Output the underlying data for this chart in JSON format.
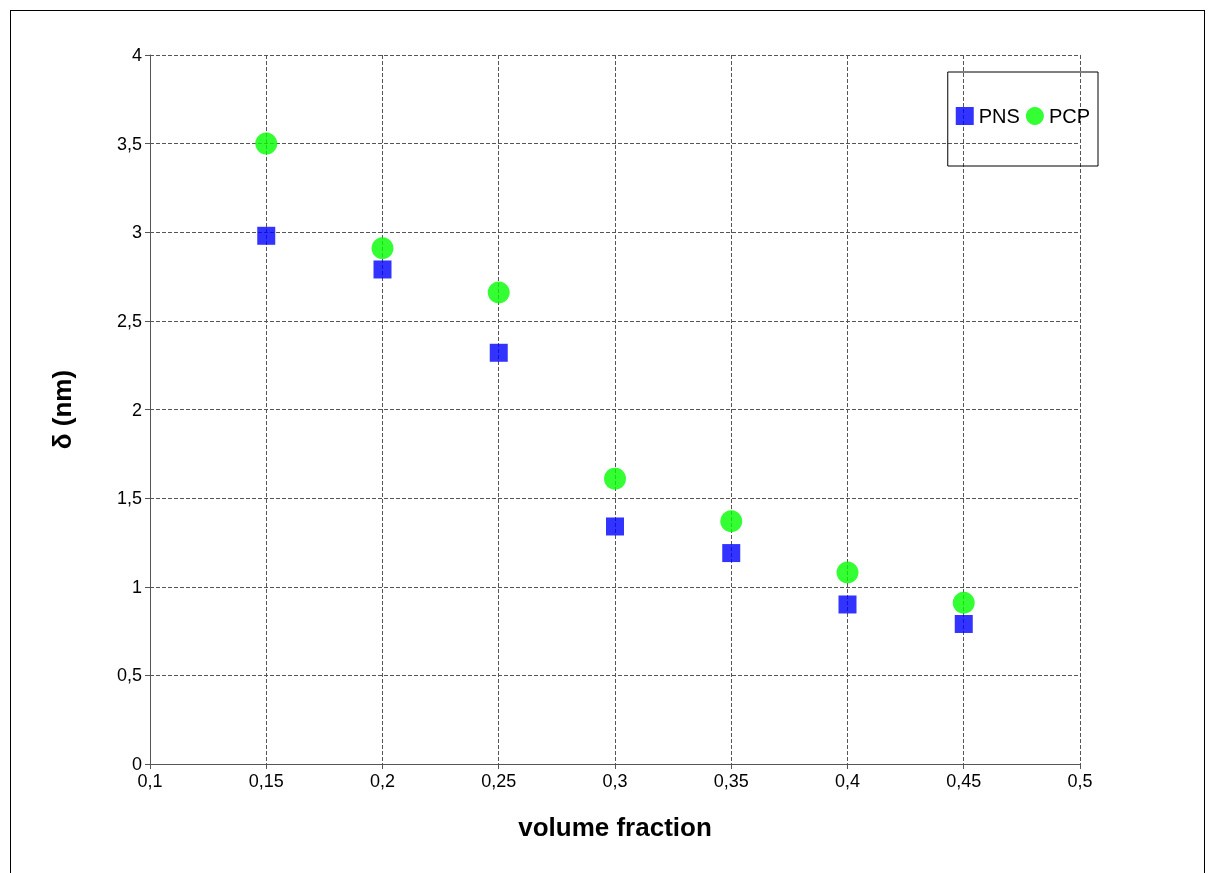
{
  "chart_data": {
    "type": "scatter",
    "xlabel": "volume fraction",
    "ylabel": "δ (nm)",
    "x": [
      0.15,
      0.2,
      0.25,
      0.3,
      0.35,
      0.4,
      0.45
    ],
    "series": [
      {
        "name": "PNS",
        "color": "#0000ff",
        "marker": "square",
        "values": [
          2.98,
          2.79,
          2.32,
          1.34,
          1.19,
          0.9,
          0.79
        ]
      },
      {
        "name": "PCP",
        "color": "#00ff00",
        "marker": "circle",
        "values": [
          3.5,
          2.91,
          2.66,
          1.61,
          1.37,
          1.08,
          0.91
        ]
      }
    ],
    "xlim": [
      0.1,
      0.5
    ],
    "xticks": [
      {
        "value": 0.1,
        "label": "0,1"
      },
      {
        "value": 0.15,
        "label": "0,15"
      },
      {
        "value": 0.2,
        "label": "0,2"
      },
      {
        "value": 0.25,
        "label": "0,25"
      },
      {
        "value": 0.3,
        "label": "0,3"
      },
      {
        "value": 0.35,
        "label": "0,35"
      },
      {
        "value": 0.4,
        "label": "0,4"
      },
      {
        "value": 0.45,
        "label": "0,45"
      },
      {
        "value": 0.5,
        "label": "0,5"
      }
    ],
    "ylim": [
      0,
      4
    ],
    "yticks": [
      0,
      {
        "value": 0.5,
        "label": "0,5"
      },
      1,
      {
        "value": 1.5,
        "label": "1,5"
      },
      2,
      {
        "value": 2.5,
        "label": "2,5"
      },
      3,
      {
        "value": 3.5,
        "label": "3,5"
      },
      4
    ],
    "grid": true,
    "legend": "top right"
  }
}
